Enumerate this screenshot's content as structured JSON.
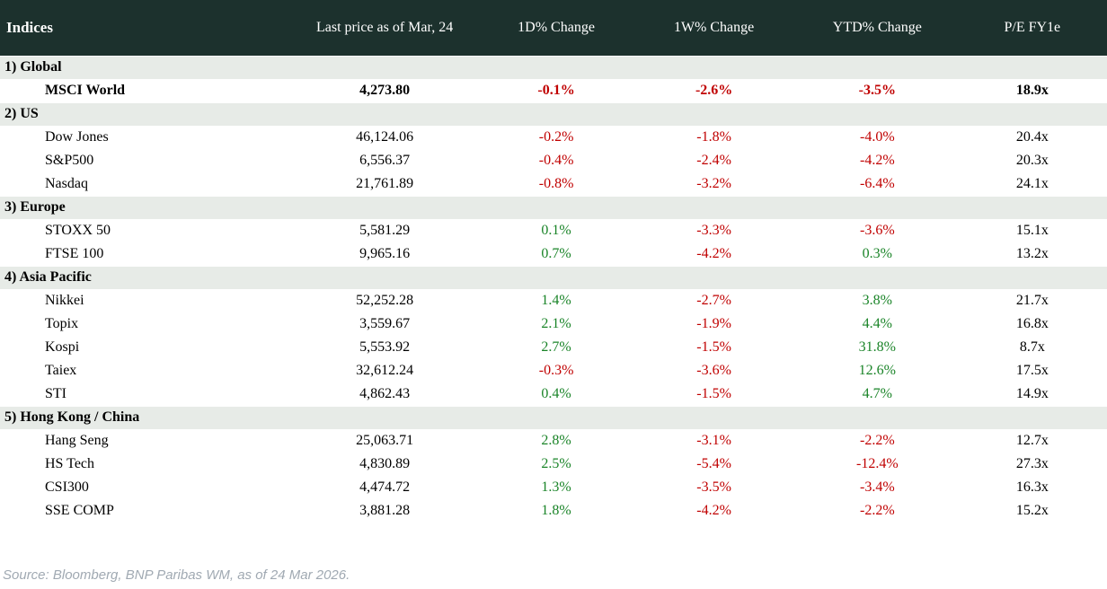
{
  "table": {
    "columns": [
      {
        "key": "name",
        "label": "Indices"
      },
      {
        "key": "price",
        "label": "Last price as of Mar, 24"
      },
      {
        "key": "d1",
        "label": "1D% Change"
      },
      {
        "key": "w1",
        "label": "1W% Change"
      },
      {
        "key": "ytd",
        "label": "YTD% Change"
      },
      {
        "key": "pe",
        "label": "P/E FY1e"
      }
    ],
    "sections": [
      {
        "label": "1) Global",
        "rows": [
          {
            "name": "MSCI World",
            "price": "4,273.80",
            "d1": "-0.1%",
            "w1": "-2.6%",
            "ytd": "-3.5%",
            "pe": "18.9x",
            "bold": true
          }
        ]
      },
      {
        "label": "2) US",
        "rows": [
          {
            "name": "Dow Jones",
            "price": "46,124.06",
            "d1": "-0.2%",
            "w1": "-1.8%",
            "ytd": "-4.0%",
            "pe": "20.4x"
          },
          {
            "name": "S&P500",
            "price": "6,556.37",
            "d1": "-0.4%",
            "w1": "-2.4%",
            "ytd": "-4.2%",
            "pe": "20.3x"
          },
          {
            "name": "Nasdaq",
            "price": "21,761.89",
            "d1": "-0.8%",
            "w1": "-3.2%",
            "ytd": "-6.4%",
            "pe": "24.1x"
          }
        ]
      },
      {
        "label": "3) Europe",
        "rows": [
          {
            "name": "STOXX 50",
            "price": "5,581.29",
            "d1": "0.1%",
            "w1": "-3.3%",
            "ytd": "-3.6%",
            "pe": "15.1x"
          },
          {
            "name": "FTSE 100",
            "price": "9,965.16",
            "d1": "0.7%",
            "w1": "-4.2%",
            "ytd": "0.3%",
            "pe": "13.2x"
          }
        ]
      },
      {
        "label": "4) Asia Pacific",
        "rows": [
          {
            "name": "Nikkei",
            "price": "52,252.28",
            "d1": "1.4%",
            "w1": "-2.7%",
            "ytd": "3.8%",
            "pe": "21.7x"
          },
          {
            "name": "Topix",
            "price": "3,559.67",
            "d1": "2.1%",
            "w1": "-1.9%",
            "ytd": "4.4%",
            "pe": "16.8x"
          },
          {
            "name": "Kospi",
            "price": "5,553.92",
            "d1": "2.7%",
            "w1": "-1.5%",
            "ytd": "31.8%",
            "pe": "8.7x"
          },
          {
            "name": "Taiex",
            "price": "32,612.24",
            "d1": "-0.3%",
            "w1": "-3.6%",
            "ytd": "12.6%",
            "pe": "17.5x"
          },
          {
            "name": "STI",
            "price": "4,862.43",
            "d1": "0.4%",
            "w1": "-1.5%",
            "ytd": "4.7%",
            "pe": "14.9x"
          }
        ]
      },
      {
        "label": "5) Hong Kong / China",
        "rows": [
          {
            "name": "Hang Seng",
            "price": "25,063.71",
            "d1": "2.8%",
            "w1": "-3.1%",
            "ytd": "-2.2%",
            "pe": "12.7x"
          },
          {
            "name": "HS Tech",
            "price": "4,830.89",
            "d1": "2.5%",
            "w1": "-5.4%",
            "ytd": "-12.4%",
            "pe": "27.3x"
          },
          {
            "name": "CSI300",
            "price": "4,474.72",
            "d1": "1.3%",
            "w1": "-3.5%",
            "ytd": "-3.4%",
            "pe": "16.3x"
          },
          {
            "name": "SSE COMP",
            "price": "3,881.28",
            "d1": "1.8%",
            "w1": "-4.2%",
            "ytd": "-2.2%",
            "pe": "15.2x"
          }
        ]
      }
    ]
  },
  "footer": {
    "source_text": "Source: Bloomberg, BNP Paribas WM, as of 24 Mar 2026."
  },
  "colors": {
    "header_bg": "#1c312d",
    "section_bg": "#e7ebe7",
    "positive_green": "#1a8428",
    "negative_red": "#c00000",
    "footer_text": "#a0a9b2"
  }
}
